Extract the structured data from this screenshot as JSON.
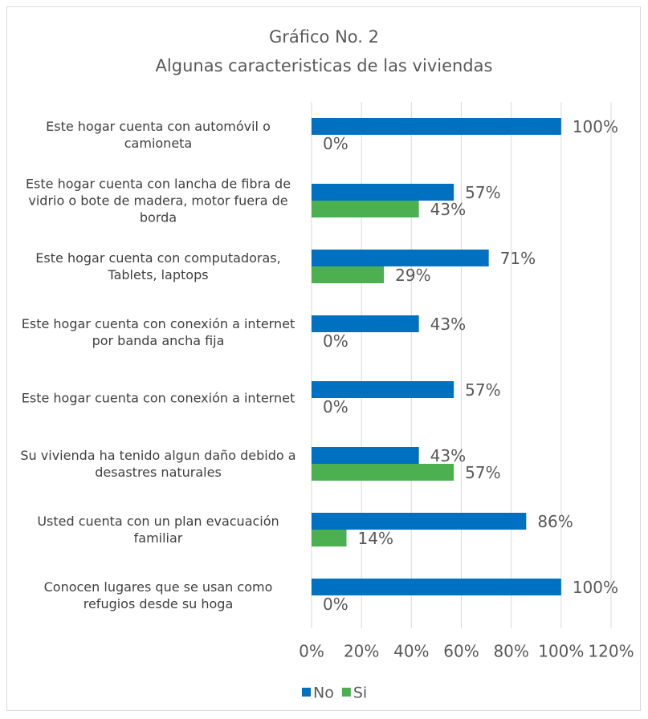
{
  "chart_data": {
    "type": "bar",
    "orientation": "horizontal",
    "title": "Gráfico No. 2",
    "subtitle": "Algunas caracteristicas de las viviendas",
    "categories": [
      "Este hogar cuenta con automóvil o camioneta",
      "Este hogar cuenta con lancha de fibra de vidrio o bote de madera, motor fuera de borda",
      "Este hogar cuenta con computadoras, Tablets, laptops",
      "Este hogar cuenta con conexión a internet por banda ancha fija",
      "Este hogar cuenta con conexión a internet",
      "Su vivienda ha tenido algun daño debido a desastres naturales",
      "Usted cuenta con un plan evacuación familiar",
      "Conocen lugares que se usan como refugios desde su hoga"
    ],
    "series": [
      {
        "name": "No",
        "color": "#0070c0",
        "values": [
          100,
          57,
          71,
          43,
          57,
          43,
          86,
          100
        ],
        "value_labels": [
          "100%",
          "57%",
          "71%",
          "43%",
          "57%",
          "43%",
          "86%",
          "100%"
        ]
      },
      {
        "name": "Si",
        "color": "#4caf50",
        "values": [
          0,
          43,
          29,
          0,
          0,
          57,
          14,
          0
        ],
        "value_labels": [
          "0%",
          "43%",
          "29%",
          "0%",
          "0%",
          "57%",
          "14%",
          "0%"
        ]
      }
    ],
    "xlim": [
      0,
      120
    ],
    "xticks": [
      {
        "value": 0,
        "label": "0%"
      },
      {
        "value": 20,
        "label": "20%"
      },
      {
        "value": 40,
        "label": "40%"
      },
      {
        "value": 60,
        "label": "60%"
      },
      {
        "value": 80,
        "label": "80%"
      },
      {
        "value": 100,
        "label": "100%"
      },
      {
        "value": 120,
        "label": "120%"
      }
    ],
    "grid": true,
    "legend": "bottom"
  }
}
